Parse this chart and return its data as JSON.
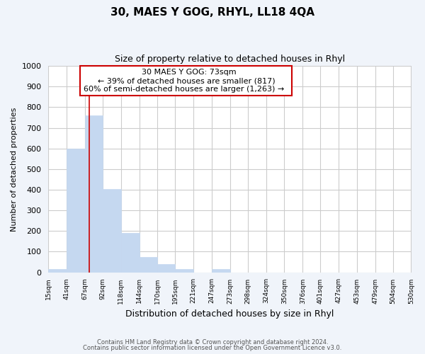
{
  "title": "30, MAES Y GOG, RHYL, LL18 4QA",
  "subtitle": "Size of property relative to detached houses in Rhyl",
  "xlabel": "Distribution of detached houses by size in Rhyl",
  "ylabel": "Number of detached properties",
  "bar_color": "#c5d8f0",
  "bar_edge_color": "#c5d8f0",
  "fig_background_color": "#f0f4fa",
  "plot_background_color": "#ffffff",
  "grid_color": "#cccccc",
  "bin_edges": [
    15,
    41,
    67,
    92,
    118,
    144,
    170,
    195,
    221,
    247,
    273,
    298,
    324,
    350,
    376,
    401,
    427,
    453,
    479,
    504,
    530
  ],
  "bar_heights": [
    15,
    600,
    760,
    405,
    190,
    75,
    40,
    15,
    0,
    15,
    0,
    0,
    0,
    0,
    0,
    0,
    0,
    0,
    0,
    0
  ],
  "tick_labels": [
    "15sqm",
    "41sqm",
    "67sqm",
    "92sqm",
    "118sqm",
    "144sqm",
    "170sqm",
    "195sqm",
    "221sqm",
    "247sqm",
    "273sqm",
    "298sqm",
    "324sqm",
    "350sqm",
    "376sqm",
    "401sqm",
    "427sqm",
    "453sqm",
    "479sqm",
    "504sqm",
    "530sqm"
  ],
  "ylim": [
    0,
    1000
  ],
  "yticks": [
    0,
    100,
    200,
    300,
    400,
    500,
    600,
    700,
    800,
    900,
    1000
  ],
  "property_line_x": 73,
  "property_line_color": "#cc0000",
  "annotation_title": "30 MAES Y GOG: 73sqm",
  "annotation_line1": "← 39% of detached houses are smaller (817)",
  "annotation_line2": "60% of semi-detached houses are larger (1,263) →",
  "annotation_box_edge_color": "#cc0000",
  "annotation_box_face_color": "#ffffff",
  "footer_line1": "Contains HM Land Registry data © Crown copyright and database right 2024.",
  "footer_line2": "Contains public sector information licensed under the Open Government Licence v3.0."
}
